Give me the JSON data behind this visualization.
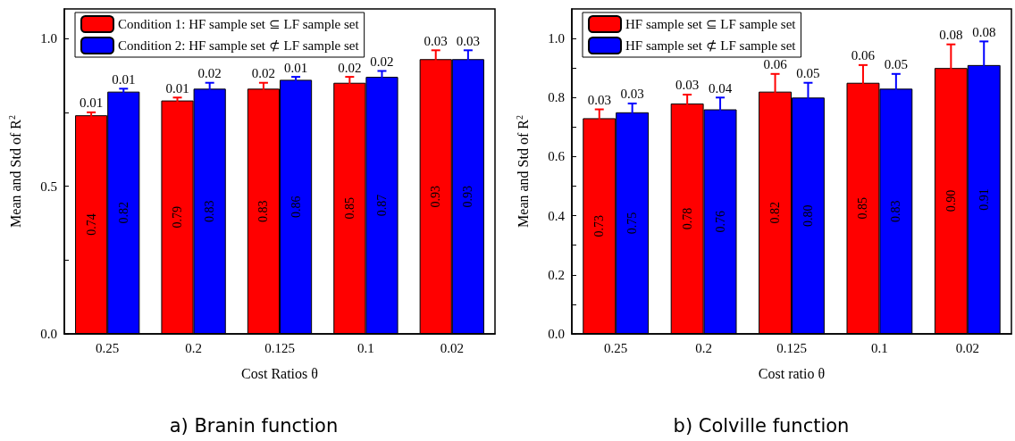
{
  "chart_data": [
    {
      "type": "bar",
      "title": "a) Branin function",
      "xlabel": "Cost Ratios θ",
      "ylabel": "Mean and Std of R$^{2}$",
      "categories": [
        "0.25",
        "0.2",
        "0.125",
        "0.1",
        "0.02"
      ],
      "series": [
        {
          "name": "Condition 1: HF sample set ⊆ LF sample set",
          "color": "#ff0000",
          "values": [
            0.74,
            0.79,
            0.83,
            0.85,
            0.93
          ],
          "errors": [
            0.01,
            0.01,
            0.02,
            0.02,
            0.03
          ],
          "value_labels": [
            "0.74",
            "0.79",
            "0.83",
            "0.85",
            "0.93"
          ]
        },
        {
          "name": "Condition 2: HF sample set ⊄ LF sample set",
          "color": "#0000ff",
          "values": [
            0.82,
            0.83,
            0.86,
            0.87,
            0.93
          ],
          "errors": [
            0.01,
            0.02,
            0.01,
            0.02,
            0.03
          ],
          "value_labels": [
            "0.82",
            "0.83",
            "0.86",
            "0.87",
            "0.93"
          ]
        }
      ],
      "annotations": [
        "0.01",
        "0.01",
        "0.02",
        "0.02",
        "0.03",
        "0.01",
        "0.02",
        "0.01",
        "0.02",
        "0.03"
      ],
      "ylim": [
        0,
        1.1
      ],
      "yticks": [
        {
          "value": 0,
          "label": "0.0"
        },
        {
          "value": 0.25,
          "label": null
        },
        {
          "value": 0.5,
          "label": "0.5"
        },
        {
          "value": 0.75,
          "label": null
        },
        {
          "value": 1,
          "label": "1.0"
        }
      ],
      "grid": false,
      "legend": "top left"
    },
    {
      "type": "bar",
      "title": "b) Colville function",
      "xlabel": "Cost ratio θ",
      "ylabel": "Mean and Std of R$^{2}$",
      "categories": [
        "0.25",
        "0.2",
        "0.125",
        "0.1",
        "0.02"
      ],
      "series": [
        {
          "name": "HF sample set ⊆ LF sample set",
          "color": "#ff0000",
          "values": [
            0.73,
            0.78,
            0.82,
            0.85,
            0.9
          ],
          "errors": [
            0.03,
            0.03,
            0.06,
            0.06,
            0.08
          ],
          "value_labels": [
            "0.73",
            "0.78",
            "0.82",
            "0.85",
            "0.90"
          ]
        },
        {
          "name": "HF sample set ⊄ LF sample set",
          "color": "#0000ff",
          "values": [
            0.75,
            0.76,
            0.8,
            0.83,
            0.91
          ],
          "errors": [
            0.03,
            0.04,
            0.05,
            0.05,
            0.08
          ],
          "value_labels": [
            "0.75",
            "0.76",
            "0.80",
            "0.83",
            "0.91"
          ]
        }
      ],
      "annotations": [
        "0.03",
        "0.03",
        "0.06",
        "0.06",
        "0.08",
        "0.03",
        "0.04",
        "0.05",
        "0.05",
        "0.08"
      ],
      "ylim": [
        0,
        1.1
      ],
      "yticks": [
        {
          "value": 0,
          "label": "0.0"
        },
        {
          "value": 0.1,
          "label": null
        },
        {
          "value": 0.2,
          "label": "0.2"
        },
        {
          "value": 0.3,
          "label": null
        },
        {
          "value": 0.4,
          "label": "0.4"
        },
        {
          "value": 0.5,
          "label": null
        },
        {
          "value": 0.6,
          "label": "0.6"
        },
        {
          "value": 0.7,
          "label": null
        },
        {
          "value": 0.8,
          "label": "0.8"
        },
        {
          "value": 0.9,
          "label": null
        },
        {
          "value": 1,
          "label": "1.0"
        }
      ],
      "grid": false,
      "legend": "top left"
    }
  ]
}
